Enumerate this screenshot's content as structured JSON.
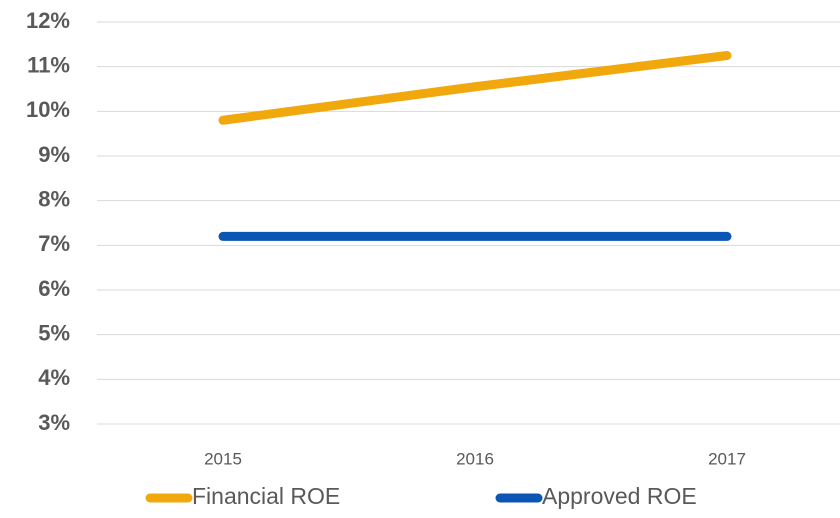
{
  "chart_data": {
    "type": "line",
    "categories": [
      "2015",
      "2016",
      "2017"
    ],
    "series": [
      {
        "name": "Financial ROE",
        "color": "#f0a80c",
        "values": [
          9.8,
          10.55,
          11.25
        ]
      },
      {
        "name": "Approved ROE",
        "color": "#0b55b5",
        "values": [
          7.2,
          7.2,
          7.2
        ]
      }
    ],
    "ylim": [
      3,
      12
    ],
    "yticks": [
      {
        "value": 3,
        "label": "3%"
      },
      {
        "value": 4,
        "label": "4%"
      },
      {
        "value": 5,
        "label": "5%"
      },
      {
        "value": 6,
        "label": "6%"
      },
      {
        "value": 7,
        "label": "7%"
      },
      {
        "value": 8,
        "label": "8%"
      },
      {
        "value": 9,
        "label": "9%"
      },
      {
        "value": 10,
        "label": "10%"
      },
      {
        "value": 11,
        "label": "11%"
      },
      {
        "value": 12,
        "label": "12%"
      }
    ],
    "grid": true,
    "legend": "bottom"
  }
}
